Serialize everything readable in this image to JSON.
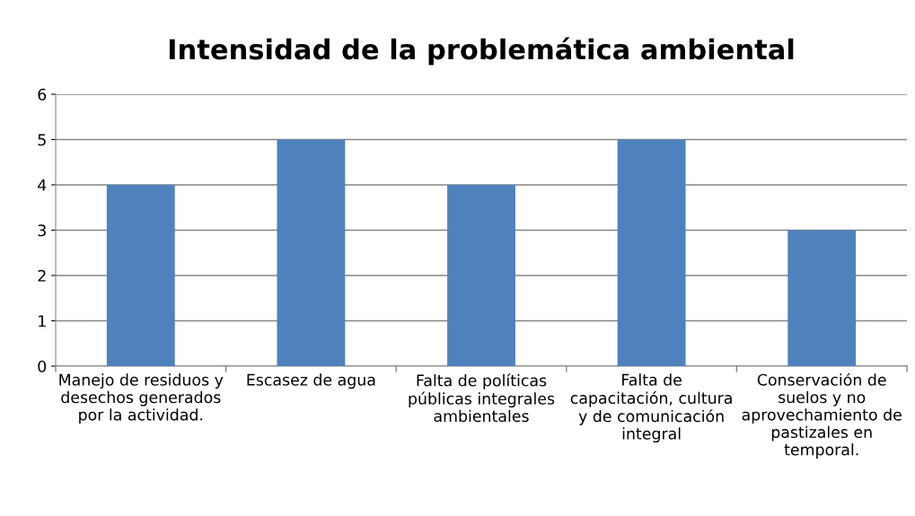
{
  "chart_data": {
    "type": "bar",
    "title": "Intensidad de la problemática ambiental",
    "categories": [
      "Manejo de residuos y\ndesechos generados\npor la actividad.",
      "Escasez de agua",
      "Falta de políticas\npúblicas integrales\nambientales",
      "Falta de\ncapacitación, cultura\ny de comunicación\nintegral",
      "Conservación de\nsuelos y no\naprovechamiento de\npastizales en\ntemporal."
    ],
    "values": [
      4,
      5,
      4,
      5,
      3
    ],
    "color": "#4f81bd",
    "ylim": [
      0,
      6
    ],
    "yticks": [
      0,
      1,
      2,
      3,
      4,
      5,
      6
    ],
    "grid": "y",
    "legend": false
  }
}
